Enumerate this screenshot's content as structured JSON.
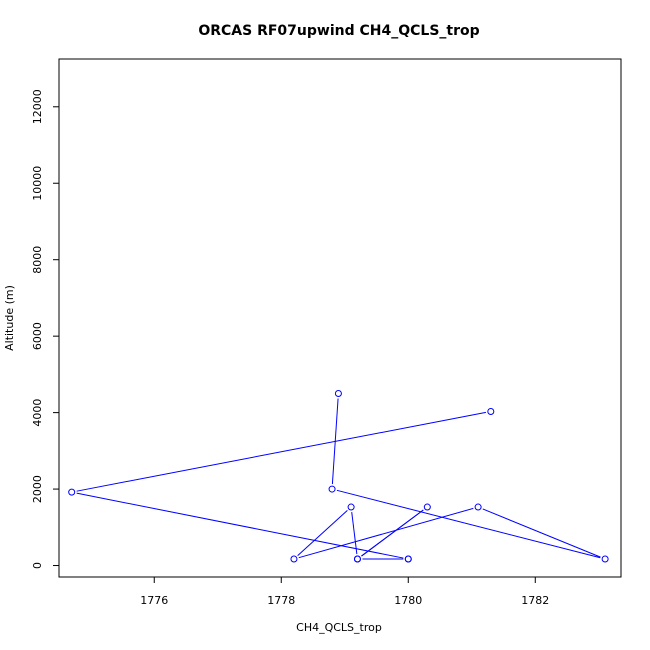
{
  "chart_data": {
    "type": "line",
    "title": "ORCAS RF07upwind CH4_QCLS_trop",
    "xlabel": "CH4_QCLS_trop",
    "ylabel": "Altitude (m)",
    "xlim": [
      1774.5,
      1783.35
    ],
    "ylim": [
      -300,
      13250
    ],
    "xticks": [
      1776,
      1778,
      1780,
      1782
    ],
    "yticks": [
      0,
      2000,
      4000,
      6000,
      8000,
      10000,
      12000
    ],
    "xtick_labels": [
      "1776",
      "1778",
      "1780",
      "1782"
    ],
    "ytick_labels": [
      "0",
      "2000",
      "4000",
      "6000",
      "8000",
      "10000",
      "12000"
    ],
    "grid": false,
    "series": [
      {
        "color": "#0000ff",
        "marker": "open-circle",
        "points": [
          {
            "x": 1778.9,
            "y": 4500
          },
          {
            "x": 1778.8,
            "y": 2000
          },
          {
            "x": 1783.1,
            "y": 170
          },
          {
            "x": 1781.1,
            "y": 1530
          },
          {
            "x": 1778.2,
            "y": 170
          },
          {
            "x": 1779.1,
            "y": 1530
          },
          {
            "x": 1779.2,
            "y": 170
          },
          {
            "x": 1780.3,
            "y": 1530
          },
          {
            "x": 1779.2,
            "y": 170
          },
          {
            "x": 1780.0,
            "y": 170
          },
          {
            "x": 1780.0,
            "y": 170
          },
          {
            "x": 1774.7,
            "y": 1920
          },
          {
            "x": 1781.3,
            "y": 4030
          }
        ]
      }
    ]
  }
}
